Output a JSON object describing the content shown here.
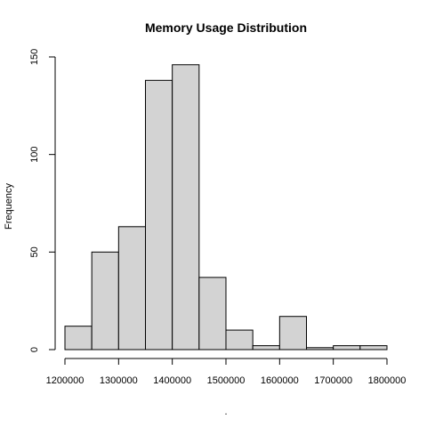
{
  "chart_data": {
    "type": "bar",
    "title": "Memory Usage Distribution",
    "xlabel": ".",
    "ylabel": "Frequency",
    "bins": [
      {
        "from": 1200000,
        "to": 1250000,
        "count": 12
      },
      {
        "from": 1250000,
        "to": 1300000,
        "count": 50
      },
      {
        "from": 1300000,
        "to": 1350000,
        "count": 63
      },
      {
        "from": 1350000,
        "to": 1400000,
        "count": 138
      },
      {
        "from": 1400000,
        "to": 1450000,
        "count": 146
      },
      {
        "from": 1450000,
        "to": 1500000,
        "count": 37
      },
      {
        "from": 1500000,
        "to": 1550000,
        "count": 10
      },
      {
        "from": 1550000,
        "to": 1600000,
        "count": 2
      },
      {
        "from": 1600000,
        "to": 1650000,
        "count": 17
      },
      {
        "from": 1650000,
        "to": 1700000,
        "count": 1
      },
      {
        "from": 1700000,
        "to": 1750000,
        "count": 2
      },
      {
        "from": 1750000,
        "to": 1800000,
        "count": 2
      }
    ],
    "xlim": [
      1200000,
      1800000
    ],
    "ylim": [
      0,
      150
    ],
    "x_ticks": [
      1200000,
      1300000,
      1400000,
      1500000,
      1600000,
      1700000,
      1800000
    ],
    "x_tick_labels": [
      "1200000",
      "1300000",
      "1400000",
      "1500000",
      "1600000",
      "1700000",
      "1800000"
    ],
    "y_ticks": [
      0,
      50,
      100,
      150
    ],
    "y_tick_labels": [
      "0",
      "50",
      "100",
      "150"
    ],
    "grid": false,
    "colors": {
      "bar_fill": "#d3d3d3",
      "bar_stroke": "#000000"
    }
  }
}
